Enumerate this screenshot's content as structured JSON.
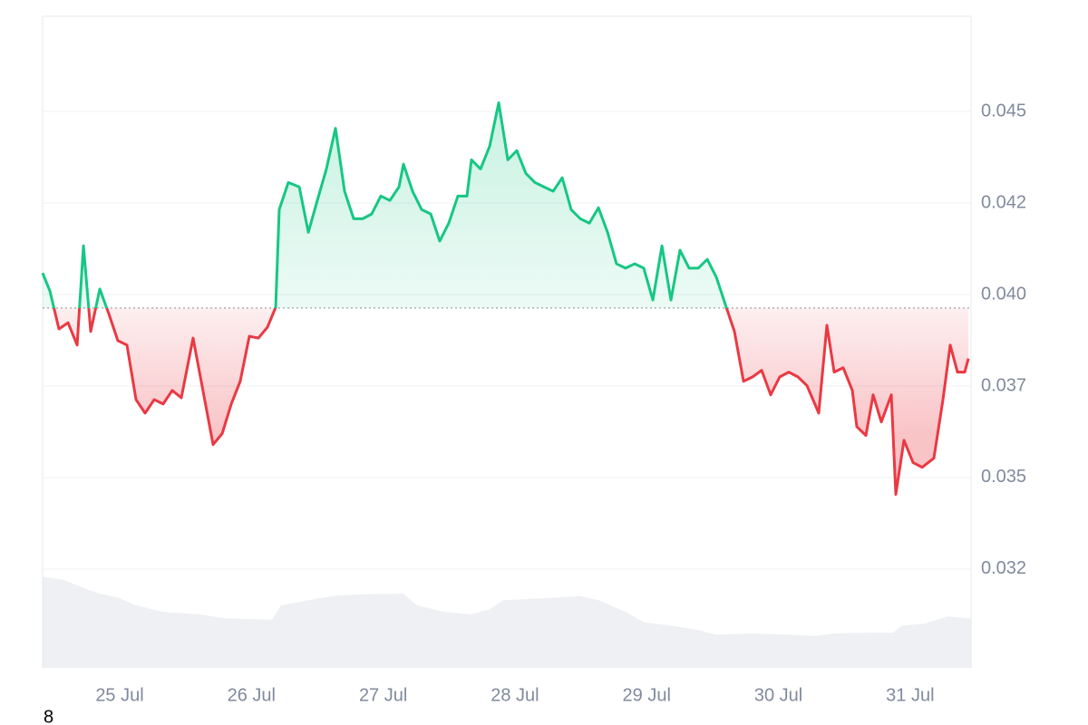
{
  "chart_data": {
    "type": "line",
    "x": [
      -0.585,
      -0.53,
      -0.461,
      -0.392,
      -0.323,
      -0.275,
      -0.22,
      -0.151,
      -0.083,
      -0.014,
      0.055,
      0.124,
      0.193,
      0.262,
      0.33,
      0.399,
      0.468,
      0.557,
      0.619,
      0.709,
      0.778,
      0.847,
      0.915,
      0.984,
      1.053,
      1.122,
      1.184,
      1.211,
      1.28,
      1.363,
      1.432,
      1.5,
      1.569,
      1.638,
      1.707,
      1.776,
      1.844,
      1.913,
      1.982,
      2.051,
      2.12,
      2.154,
      2.223,
      2.292,
      2.361,
      2.429,
      2.498,
      2.567,
      2.636,
      2.67,
      2.739,
      2.808,
      2.877,
      2.946,
      3.014,
      3.083,
      3.152,
      3.221,
      3.29,
      3.359,
      3.427,
      3.496,
      3.565,
      3.634,
      3.703,
      3.771,
      3.84,
      3.909,
      3.978,
      4.047,
      4.116,
      4.184,
      4.253,
      4.322,
      4.391,
      4.46,
      4.529,
      4.597,
      4.666,
      4.735,
      4.804,
      4.873,
      4.941,
      5.01,
      5.079,
      5.148,
      5.217,
      5.306,
      5.368,
      5.423,
      5.492,
      5.561,
      5.595,
      5.664,
      5.719,
      5.781,
      5.857,
      5.891,
      5.953,
      6.022,
      6.091,
      6.18,
      6.249,
      6.304,
      6.359,
      6.414,
      6.442
    ],
    "values": [
      0.04059,
      0.0401,
      0.03906,
      0.03923,
      0.03862,
      0.04133,
      0.03899,
      0.04015,
      0.03948,
      0.03874,
      0.03862,
      0.03713,
      0.03676,
      0.03713,
      0.03701,
      0.03738,
      0.03718,
      0.03881,
      0.03763,
      0.0359,
      0.0362,
      0.03701,
      0.03763,
      0.03886,
      0.03881,
      0.03911,
      0.03965,
      0.04232,
      0.04306,
      0.04294,
      0.0417,
      0.04257,
      0.04343,
      0.04454,
      0.04282,
      0.04207,
      0.04207,
      0.0422,
      0.04269,
      0.04257,
      0.04294,
      0.04356,
      0.04282,
      0.04232,
      0.0422,
      0.04146,
      0.04195,
      0.04269,
      0.04269,
      0.04368,
      0.04343,
      0.04405,
      0.04524,
      0.04368,
      0.04393,
      0.04331,
      0.04306,
      0.04294,
      0.04282,
      0.04319,
      0.04232,
      0.04207,
      0.04195,
      0.04237,
      0.0417,
      0.04084,
      0.04072,
      0.04084,
      0.04072,
      0.03985,
      0.04133,
      0.03985,
      0.04121,
      0.04072,
      0.04072,
      0.04096,
      0.04047,
      0.03973,
      0.03899,
      0.03763,
      0.03775,
      0.03793,
      0.03726,
      0.03775,
      0.03788,
      0.03775,
      0.03751,
      0.03676,
      0.03916,
      0.03788,
      0.038,
      0.03738,
      0.03639,
      0.03615,
      0.03726,
      0.03652,
      0.03726,
      0.03454,
      0.03602,
      0.03541,
      0.03528,
      0.03553,
      0.03713,
      0.03862,
      0.03788,
      0.03788,
      0.03825
    ],
    "baseline": 0.03963,
    "up_color": "#16c784",
    "down_color": "#ea3943",
    "xlim": [
      -0.585,
      6.462
    ],
    "xticks": [
      {
        "value": 0,
        "label": "25 Jul"
      },
      {
        "value": 1,
        "label": "26 Jul"
      },
      {
        "value": 2,
        "label": "27 Jul"
      },
      {
        "value": 3,
        "label": "28 Jul"
      },
      {
        "value": 4,
        "label": "29 Jul"
      },
      {
        "value": 5,
        "label": "30 Jul"
      },
      {
        "value": 6,
        "label": "31 Jul"
      }
    ],
    "ylim": [
      0.0298,
      0.0476
    ],
    "yticks": [
      {
        "value": 0.045,
        "label": "0.045"
      },
      {
        "value": 0.0425,
        "label": "0.042"
      },
      {
        "value": 0.04,
        "label": "0.040"
      },
      {
        "value": 0.0375,
        "label": "0.037"
      },
      {
        "value": 0.035,
        "label": "0.035"
      },
      {
        "value": 0.0325,
        "label": "0.032"
      }
    ],
    "grid": true,
    "volume": {
      "color": "#eef0f3",
      "axis": "y2",
      "x": [
        -0.585,
        -0.427,
        -0.289,
        -0.151,
        0,
        0.124,
        0.33,
        0.606,
        0.812,
        0.998,
        1.156,
        1.225,
        1.432,
        1.638,
        1.844,
        2.154,
        2.257,
        2.464,
        2.67,
        2.808,
        2.911,
        3.221,
        3.496,
        3.634,
        3.84,
        3.978,
        4.184,
        4.391,
        4.529,
        4.804,
        5.079,
        5.286,
        5.423,
        5.699,
        5.871,
        5.94,
        6.112,
        6.284,
        6.462
      ],
      "values": [
        14.0,
        13.5,
        12.4,
        11.4,
        10.7,
        9.6,
        8.6,
        8.2,
        7.6,
        7.5,
        7.4,
        9.6,
        10.4,
        11.1,
        11.3,
        11.4,
        9.6,
        8.6,
        8.2,
        9.0,
        10.4,
        10.7,
        11.0,
        10.4,
        8.6,
        7.0,
        6.5,
        5.8,
        5.1,
        5.3,
        5.1,
        4.9,
        5.3,
        5.4,
        5.4,
        6.5,
        6.8,
        7.9,
        7.6
      ]
    },
    "y2lim": [
      0,
      100
    ],
    "footnote": "8"
  }
}
